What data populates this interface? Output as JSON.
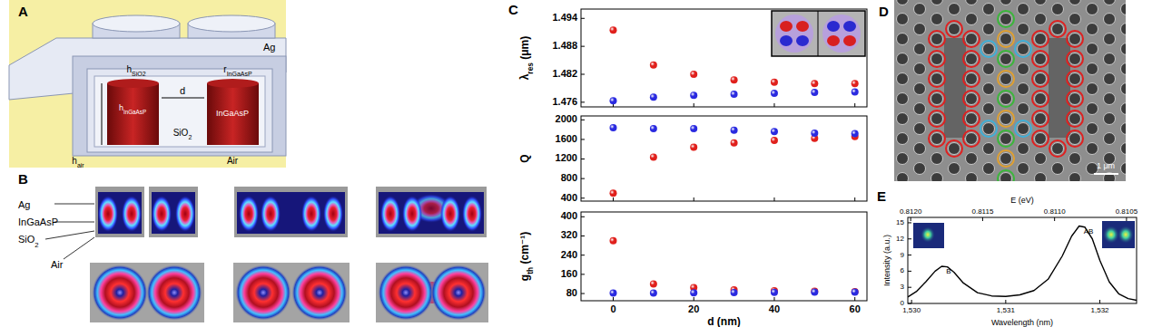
{
  "panels": {
    "A": {
      "label": "A",
      "texts": {
        "ag": "Ag",
        "h_sio2": {
          "base": "h",
          "sub": "SiO2"
        },
        "r_ingaasp": {
          "base": "r",
          "sub": "InGaAsP"
        },
        "d": "d",
        "h_ingaasp": {
          "base": "h",
          "sub": "InGaAsP"
        },
        "ingaasp": "InGaAsP",
        "sio2": {
          "base": "SiO",
          "sub": "2"
        },
        "air": "Air",
        "h_air": {
          "base": "h",
          "sub": "air"
        }
      }
    },
    "B": {
      "label": "B",
      "texts": {
        "ag": "Ag",
        "ingaasp": "InGaAsP",
        "sio2": {
          "base": "SiO",
          "sub": "2"
        },
        "air": "Air"
      }
    },
    "C": {
      "label": "C"
    },
    "D": {
      "label": "D",
      "scale_bar": "1 μm"
    },
    "E": {
      "label": "E"
    }
  },
  "chart_data": [
    {
      "type": "scatter",
      "y_label": {
        "base": "λ",
        "sub": "res",
        "rest": " (μm)"
      },
      "x": [
        0,
        10,
        20,
        30,
        40,
        50,
        60
      ],
      "xlim": [
        -8,
        63
      ],
      "xticks": [
        0,
        20,
        40,
        60
      ],
      "ylim": [
        1.475,
        1.496
      ],
      "yticks": [
        1.476,
        1.482,
        1.488,
        1.494
      ],
      "tick_labels": "y",
      "marker": "circle",
      "series": [
        {
          "color": "#e0201c",
          "values": [
            1.4915,
            1.484,
            1.482,
            1.4808,
            1.4803,
            1.48,
            1.48
          ]
        },
        {
          "color": "#2a2ae0",
          "values": [
            1.4763,
            1.4771,
            1.4775,
            1.4777,
            1.4779,
            1.4781,
            1.4782
          ]
        }
      ]
    },
    {
      "type": "scatter",
      "y_label": "Q",
      "x": [
        0,
        10,
        20,
        30,
        40,
        50,
        60
      ],
      "xlim": [
        -8,
        63
      ],
      "xticks": [
        0,
        20,
        40,
        60
      ],
      "ylim": [
        340,
        2080
      ],
      "yticks": [
        400,
        800,
        1200,
        1600,
        2000
      ],
      "tick_labels": "y",
      "marker": "circle",
      "series": [
        {
          "color": "#e0201c",
          "values": [
            500,
            1240,
            1440,
            1530,
            1580,
            1620,
            1660
          ]
        },
        {
          "color": "#2a2ae0",
          "values": [
            1840,
            1820,
            1820,
            1790,
            1760,
            1730,
            1720
          ]
        }
      ]
    },
    {
      "type": "scatter",
      "y_label": {
        "base": "g",
        "sub": "th",
        "rest": " (cm⁻¹)"
      },
      "x_label": "d (nm)",
      "x": [
        0,
        10,
        20,
        30,
        40,
        50,
        60
      ],
      "xlim": [
        -8,
        63
      ],
      "xticks": [
        0,
        20,
        40,
        60
      ],
      "ylim": [
        50,
        420
      ],
      "yticks": [
        80,
        160,
        240,
        320,
        400
      ],
      "marker": "circle",
      "series": [
        {
          "color": "#e0201c",
          "values": [
            300,
            120,
            105,
            95,
            92,
            90,
            88
          ]
        },
        {
          "color": "#2a2ae0",
          "values": [
            82,
            82,
            83,
            84,
            85,
            86,
            86
          ]
        }
      ]
    },
    {
      "type": "line",
      "x_label": "Wavelength (nm)",
      "y_label": "Intensity (a.u.)",
      "x2_label": "E (eV)",
      "x": [
        1529.96,
        1530.05,
        1530.15,
        1530.25,
        1530.32,
        1530.38,
        1530.45,
        1530.55,
        1530.7,
        1530.85,
        1531.0,
        1531.15,
        1531.3,
        1531.45,
        1531.6,
        1531.7,
        1531.78,
        1531.84,
        1531.92,
        1532.0,
        1532.1,
        1532.2,
        1532.3,
        1532.39
      ],
      "xlim": [
        1529.96,
        1532.39
      ],
      "xticks": [
        {
          "value": 1530,
          "label": "1,530"
        },
        {
          "value": 1531,
          "label": "1,531"
        },
        {
          "value": 1532,
          "label": "1,532"
        }
      ],
      "x2lim": [
        0.81202,
        0.81043
      ],
      "x2ticks": [
        {
          "value": 0.812,
          "label": "0.8120"
        },
        {
          "value": 0.8115,
          "label": "0.8115"
        },
        {
          "value": 0.811,
          "label": "0.8110"
        },
        {
          "value": 0.8105,
          "label": "0.8105"
        }
      ],
      "ylim": [
        0,
        16
      ],
      "yticks": [
        0,
        3,
        6,
        9,
        12,
        15
      ],
      "series": [
        {
          "color": "#000000",
          "values": [
            1.2,
            2.2,
            4.0,
            6.0,
            6.9,
            6.8,
            5.8,
            3.8,
            2.0,
            1.4,
            1.3,
            1.6,
            2.4,
            4.5,
            8.8,
            12.5,
            14.4,
            14.2,
            12.0,
            8.0,
            4.0,
            1.8,
            0.9,
            0.6
          ]
        }
      ],
      "annotations": [
        {
          "text": "B",
          "x": 1530.32,
          "y": 6.9
        },
        {
          "text": "AB",
          "x": 1531.78,
          "y": 14.4
        }
      ]
    }
  ]
}
